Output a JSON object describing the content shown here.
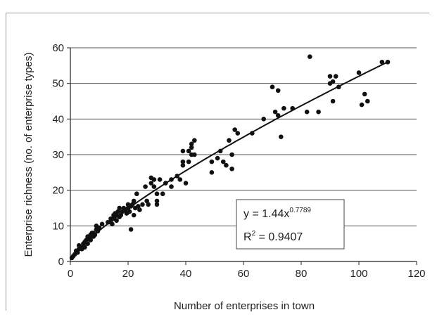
{
  "chart_data": {
    "type": "scatter",
    "xlabel": "Number of enterprises in town",
    "ylabel": "Enterprise richness (no. of enterprise types)",
    "xlim": [
      0,
      120
    ],
    "ylim": [
      0,
      60
    ],
    "xticks": [
      0,
      20,
      40,
      60,
      80,
      100,
      120
    ],
    "yticks": [
      0,
      10,
      20,
      30,
      40,
      50,
      60
    ],
    "grid": "horizontal",
    "legend": "none",
    "colors": {
      "points": "#111111",
      "line": "#111111",
      "grid": "#555555"
    },
    "trendline": {
      "type": "power",
      "coefficient": 1.44,
      "exponent": 0.7789,
      "equation_prefix": "y = 1.44x",
      "equation_exponent": "0.7789",
      "r2_prefix": "R",
      "r2_exponent": "2",
      "r2_value": " = 0.9407"
    },
    "points": [
      [
        0.5,
        1
      ],
      [
        1,
        1.5
      ],
      [
        1.5,
        2
      ],
      [
        2,
        3
      ],
      [
        2.5,
        2.5
      ],
      [
        3,
        3.5
      ],
      [
        3,
        4.5
      ],
      [
        4,
        4
      ],
      [
        4,
        3.5
      ],
      [
        4.5,
        5
      ],
      [
        5,
        5.5
      ],
      [
        5,
        4
      ],
      [
        5.5,
        6
      ],
      [
        6,
        7
      ],
      [
        6,
        5
      ],
      [
        6.5,
        6.5
      ],
      [
        7,
        7.5
      ],
      [
        7,
        6
      ],
      [
        7.5,
        8
      ],
      [
        8,
        7
      ],
      [
        8,
        8
      ],
      [
        8.5,
        7.5
      ],
      [
        9,
        9
      ],
      [
        9,
        10
      ],
      [
        9.5,
        8.5
      ],
      [
        10,
        9.5
      ],
      [
        11,
        10.5
      ],
      [
        13,
        11
      ],
      [
        14,
        12
      ],
      [
        14,
        11
      ],
      [
        14.5,
        10.5
      ],
      [
        15,
        13
      ],
      [
        15,
        12
      ],
      [
        15.5,
        13.5
      ],
      [
        16,
        11.5
      ],
      [
        16,
        13
      ],
      [
        16.5,
        14
      ],
      [
        17,
        12.5
      ],
      [
        17,
        15
      ],
      [
        17.5,
        13
      ],
      [
        18,
        14
      ],
      [
        18.5,
        15
      ],
      [
        19,
        14.5
      ],
      [
        19.5,
        13.5
      ],
      [
        20,
        15
      ],
      [
        20,
        16
      ],
      [
        20.5,
        14
      ],
      [
        21,
        15.5
      ],
      [
        21,
        9
      ],
      [
        21.5,
        16
      ],
      [
        22,
        13
      ],
      [
        22,
        17
      ],
      [
        22.5,
        15
      ],
      [
        23,
        19
      ],
      [
        23.5,
        15.5
      ],
      [
        24,
        14.5
      ],
      [
        25,
        16
      ],
      [
        26,
        21
      ],
      [
        26.5,
        17
      ],
      [
        27,
        16
      ],
      [
        28,
        22
      ],
      [
        28,
        23.5
      ],
      [
        29,
        21
      ],
      [
        29,
        23
      ],
      [
        30,
        17
      ],
      [
        30,
        16
      ],
      [
        30,
        19
      ],
      [
        31,
        23
      ],
      [
        32,
        19
      ],
      [
        33,
        22
      ],
      [
        35,
        21
      ],
      [
        35,
        23
      ],
      [
        37,
        24
      ],
      [
        38,
        23
      ],
      [
        39,
        27
      ],
      [
        39,
        28
      ],
      [
        39,
        31
      ],
      [
        40,
        22
      ],
      [
        41,
        31
      ],
      [
        41,
        28
      ],
      [
        42,
        32
      ],
      [
        42,
        33
      ],
      [
        42,
        30
      ],
      [
        43,
        34
      ],
      [
        43,
        30
      ],
      [
        49,
        25
      ],
      [
        49,
        28
      ],
      [
        51,
        29
      ],
      [
        52,
        31
      ],
      [
        53,
        28
      ],
      [
        54,
        27
      ],
      [
        55,
        34
      ],
      [
        56,
        26
      ],
      [
        56,
        30
      ],
      [
        57,
        37
      ],
      [
        58,
        36
      ],
      [
        63,
        36
      ],
      [
        67,
        40
      ],
      [
        70,
        49
      ],
      [
        71,
        42
      ],
      [
        72,
        48
      ],
      [
        72,
        41
      ],
      [
        73,
        35
      ],
      [
        74,
        43
      ],
      [
        77,
        43
      ],
      [
        82,
        42
      ],
      [
        83,
        57.5
      ],
      [
        86,
        42
      ],
      [
        90,
        52
      ],
      [
        90,
        50
      ],
      [
        91,
        50.5
      ],
      [
        91,
        45
      ],
      [
        92,
        52
      ],
      [
        93,
        49
      ],
      [
        100,
        53
      ],
      [
        101,
        44
      ],
      [
        102,
        47
      ],
      [
        103,
        45
      ],
      [
        108,
        56
      ],
      [
        110,
        56
      ]
    ]
  }
}
